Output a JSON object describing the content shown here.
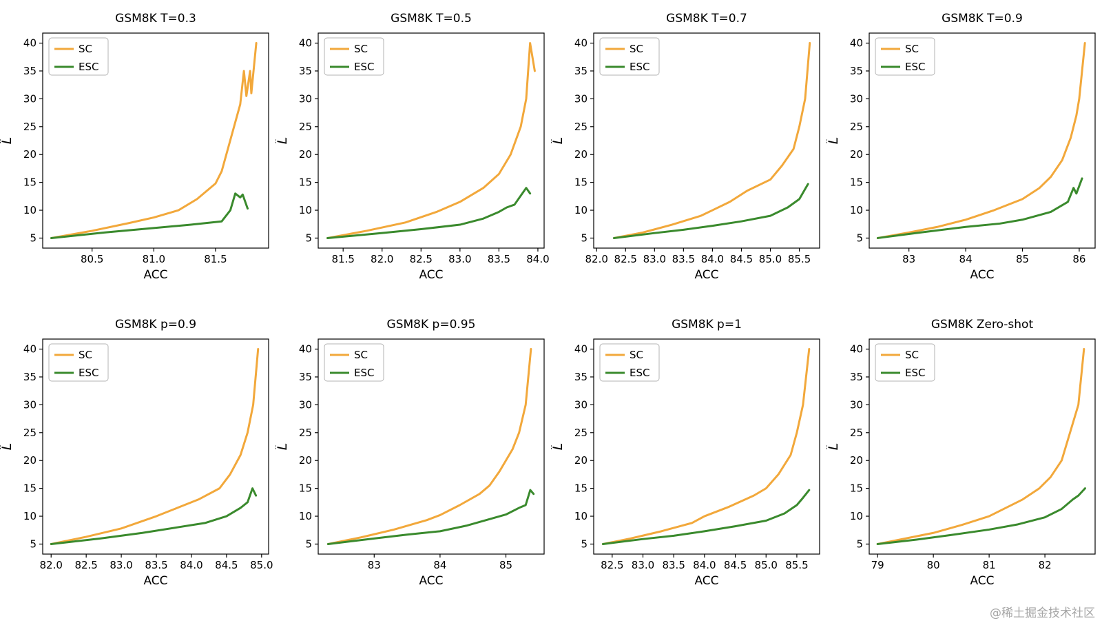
{
  "page": {
    "background": "#ffffff",
    "watermark": "@稀土掘金技术社区"
  },
  "colors": {
    "sc": "#F2A83B",
    "esc": "#3A8A2D",
    "frame": "#000000",
    "legend_border": "#b3b3b3"
  },
  "legend": {
    "entries": [
      "SC",
      "ESC"
    ]
  },
  "axes": {
    "xlabel": "ACC",
    "ylabel": "L̂",
    "yticks": [
      5,
      10,
      15,
      20,
      25,
      30,
      35,
      40
    ],
    "ylim": [
      3.2,
      41.8
    ]
  },
  "chart_data": [
    {
      "type": "line",
      "title": "GSM8K T=0.3",
      "xlabel": "ACC",
      "ylabel": "L̂",
      "xlim": [
        80.1,
        81.93
      ],
      "ylim": [
        3.2,
        41.8
      ],
      "xtick_values": [
        80.5,
        81.0,
        81.5
      ],
      "xtick_labels": [
        "80.5",
        "81.0",
        "81.5"
      ],
      "series": [
        {
          "name": "SC",
          "color_key": "sc",
          "points": [
            [
              80.17,
              5
            ],
            [
              80.5,
              6.3
            ],
            [
              80.8,
              7.7
            ],
            [
              81.0,
              8.7
            ],
            [
              81.2,
              10
            ],
            [
              81.35,
              12
            ],
            [
              81.5,
              14.8
            ],
            [
              81.55,
              17
            ],
            [
              81.6,
              21
            ],
            [
              81.65,
              25
            ],
            [
              81.7,
              29
            ],
            [
              81.73,
              35
            ],
            [
              81.75,
              30.5
            ],
            [
              81.78,
              35
            ],
            [
              81.79,
              31
            ],
            [
              81.83,
              40
            ]
          ]
        },
        {
          "name": "ESC",
          "color_key": "esc",
          "points": [
            [
              80.17,
              5
            ],
            [
              80.6,
              6
            ],
            [
              81.0,
              6.8
            ],
            [
              81.3,
              7.4
            ],
            [
              81.55,
              8
            ],
            [
              81.62,
              10
            ],
            [
              81.66,
              13
            ],
            [
              81.7,
              12.3
            ],
            [
              81.72,
              12.8
            ],
            [
              81.76,
              10.3
            ]
          ]
        }
      ]
    },
    {
      "type": "line",
      "title": "GSM8K T=0.5",
      "xlabel": "ACC",
      "ylabel": "L̂",
      "xlim": [
        81.18,
        84.08
      ],
      "ylim": [
        3.2,
        41.8
      ],
      "xtick_values": [
        81.5,
        82.0,
        82.5,
        83.0,
        83.5,
        84.0
      ],
      "xtick_labels": [
        "81.5",
        "82.0",
        "82.5",
        "83.0",
        "83.5",
        "84.0"
      ],
      "series": [
        {
          "name": "SC",
          "color_key": "sc",
          "points": [
            [
              81.3,
              5
            ],
            [
              81.8,
              6.3
            ],
            [
              82.3,
              7.8
            ],
            [
              82.7,
              9.7
            ],
            [
              83.0,
              11.5
            ],
            [
              83.3,
              14
            ],
            [
              83.5,
              16.5
            ],
            [
              83.65,
              20
            ],
            [
              83.78,
              25
            ],
            [
              83.85,
              30
            ],
            [
              83.9,
              40
            ],
            [
              83.96,
              35
            ]
          ]
        },
        {
          "name": "ESC",
          "color_key": "esc",
          "points": [
            [
              81.3,
              5
            ],
            [
              82.0,
              5.9
            ],
            [
              82.5,
              6.6
            ],
            [
              83.0,
              7.4
            ],
            [
              83.3,
              8.5
            ],
            [
              83.5,
              9.7
            ],
            [
              83.6,
              10.5
            ],
            [
              83.7,
              11
            ],
            [
              83.8,
              13
            ],
            [
              83.85,
              14
            ],
            [
              83.9,
              13
            ]
          ]
        }
      ]
    },
    {
      "type": "line",
      "title": "GSM8K T=0.7",
      "xlabel": "ACC",
      "ylabel": "L̂",
      "xlim": [
        81.95,
        85.85
      ],
      "ylim": [
        3.2,
        41.8
      ],
      "xtick_values": [
        82.0,
        82.5,
        83.0,
        83.5,
        84.0,
        84.5,
        85.0,
        85.5
      ],
      "xtick_labels": [
        "82.0",
        "82.5",
        "83.0",
        "83.5",
        "84.0",
        "84.5",
        "85.0",
        "85.5"
      ],
      "series": [
        {
          "name": "SC",
          "color_key": "sc",
          "points": [
            [
              82.3,
              5
            ],
            [
              82.8,
              6
            ],
            [
              83.3,
              7.4
            ],
            [
              83.8,
              9
            ],
            [
              84.0,
              10
            ],
            [
              84.3,
              11.5
            ],
            [
              84.6,
              13.5
            ],
            [
              85.0,
              15.5
            ],
            [
              85.2,
              18
            ],
            [
              85.4,
              21
            ],
            [
              85.5,
              25
            ],
            [
              85.6,
              30
            ],
            [
              85.68,
              40
            ]
          ]
        },
        {
          "name": "ESC",
          "color_key": "esc",
          "points": [
            [
              82.3,
              5
            ],
            [
              83.0,
              5.9
            ],
            [
              83.5,
              6.5
            ],
            [
              84.0,
              7.2
            ],
            [
              84.5,
              8
            ],
            [
              85.0,
              9
            ],
            [
              85.3,
              10.5
            ],
            [
              85.5,
              12
            ],
            [
              85.65,
              14.7
            ]
          ]
        }
      ]
    },
    {
      "type": "line",
      "title": "GSM8K T=0.9",
      "xlabel": "ACC",
      "ylabel": "L̂",
      "xlim": [
        82.3,
        86.28
      ],
      "ylim": [
        3.2,
        41.8
      ],
      "xtick_values": [
        83,
        84,
        85,
        86
      ],
      "xtick_labels": [
        "83",
        "84",
        "85",
        "86"
      ],
      "series": [
        {
          "name": "SC",
          "color_key": "sc",
          "points": [
            [
              82.45,
              5
            ],
            [
              83.0,
              6
            ],
            [
              83.5,
              7
            ],
            [
              84.0,
              8.3
            ],
            [
              84.5,
              10
            ],
            [
              85.0,
              12
            ],
            [
              85.3,
              14
            ],
            [
              85.5,
              16
            ],
            [
              85.7,
              19
            ],
            [
              85.85,
              23
            ],
            [
              85.95,
              27
            ],
            [
              86.0,
              30
            ],
            [
              86.1,
              40
            ]
          ]
        },
        {
          "name": "ESC",
          "color_key": "esc",
          "points": [
            [
              82.45,
              5
            ],
            [
              83.2,
              6
            ],
            [
              84.0,
              7
            ],
            [
              84.6,
              7.6
            ],
            [
              85.0,
              8.3
            ],
            [
              85.5,
              9.7
            ],
            [
              85.8,
              11.5
            ],
            [
              85.9,
              14
            ],
            [
              85.95,
              13
            ],
            [
              86.05,
              15.7
            ]
          ]
        }
      ]
    },
    {
      "type": "line",
      "title": "GSM8K p=0.9",
      "xlabel": "ACC",
      "ylabel": "L̂",
      "xlim": [
        81.88,
        85.1
      ],
      "ylim": [
        3.2,
        41.8
      ],
      "xtick_values": [
        82.0,
        82.5,
        83.0,
        83.5,
        84.0,
        84.5,
        85.0
      ],
      "xtick_labels": [
        "82.0",
        "82.5",
        "83.0",
        "83.5",
        "84.0",
        "84.5",
        "85.0"
      ],
      "series": [
        {
          "name": "SC",
          "color_key": "sc",
          "points": [
            [
              82.0,
              5
            ],
            [
              82.5,
              6.3
            ],
            [
              83.0,
              7.8
            ],
            [
              83.5,
              10
            ],
            [
              83.8,
              11.5
            ],
            [
              84.1,
              13
            ],
            [
              84.4,
              15
            ],
            [
              84.55,
              17.5
            ],
            [
              84.7,
              21
            ],
            [
              84.8,
              25
            ],
            [
              84.88,
              30
            ],
            [
              84.95,
              40
            ]
          ]
        },
        {
          "name": "ESC",
          "color_key": "esc",
          "points": [
            [
              82.0,
              5
            ],
            [
              82.7,
              6
            ],
            [
              83.3,
              7
            ],
            [
              83.8,
              8
            ],
            [
              84.2,
              8.8
            ],
            [
              84.5,
              10
            ],
            [
              84.7,
              11.5
            ],
            [
              84.8,
              12.5
            ],
            [
              84.87,
              15
            ],
            [
              84.92,
              13.7
            ]
          ]
        }
      ]
    },
    {
      "type": "line",
      "title": "GSM8K p=0.95",
      "xlabel": "ACC",
      "ylabel": "L̂",
      "xlim": [
        82.15,
        85.58
      ],
      "ylim": [
        3.2,
        41.8
      ],
      "xtick_values": [
        83,
        84,
        85
      ],
      "xtick_labels": [
        "83",
        "84",
        "85"
      ],
      "series": [
        {
          "name": "SC",
          "color_key": "sc",
          "points": [
            [
              82.3,
              5
            ],
            [
              82.8,
              6.2
            ],
            [
              83.3,
              7.6
            ],
            [
              83.8,
              9.3
            ],
            [
              84.0,
              10.2
            ],
            [
              84.3,
              12
            ],
            [
              84.6,
              14
            ],
            [
              84.75,
              15.5
            ],
            [
              84.9,
              18
            ],
            [
              85.1,
              22
            ],
            [
              85.2,
              25
            ],
            [
              85.3,
              30
            ],
            [
              85.38,
              40
            ]
          ]
        },
        {
          "name": "ESC",
          "color_key": "esc",
          "points": [
            [
              82.3,
              5
            ],
            [
              83.0,
              6
            ],
            [
              83.5,
              6.7
            ],
            [
              84.0,
              7.3
            ],
            [
              84.4,
              8.3
            ],
            [
              84.7,
              9.3
            ],
            [
              85.0,
              10.3
            ],
            [
              85.2,
              11.5
            ],
            [
              85.3,
              12
            ],
            [
              85.37,
              14.7
            ],
            [
              85.42,
              14
            ]
          ]
        }
      ]
    },
    {
      "type": "line",
      "title": "GSM8K p=1",
      "xlabel": "ACC",
      "ylabel": "L̂",
      "xlim": [
        82.2,
        85.87
      ],
      "ylim": [
        3.2,
        41.8
      ],
      "xtick_values": [
        82.5,
        83.0,
        83.5,
        84.0,
        84.5,
        85.0,
        85.5
      ],
      "xtick_labels": [
        "82.5",
        "83.0",
        "83.5",
        "84.0",
        "84.5",
        "85.0",
        "85.5"
      ],
      "series": [
        {
          "name": "SC",
          "color_key": "sc",
          "points": [
            [
              82.35,
              5
            ],
            [
              82.8,
              6
            ],
            [
              83.3,
              7.3
            ],
            [
              83.8,
              8.8
            ],
            [
              84.0,
              10
            ],
            [
              84.4,
              11.7
            ],
            [
              84.8,
              13.7
            ],
            [
              85.0,
              15
            ],
            [
              85.2,
              17.5
            ],
            [
              85.4,
              21
            ],
            [
              85.5,
              25
            ],
            [
              85.6,
              30
            ],
            [
              85.7,
              40
            ]
          ]
        },
        {
          "name": "ESC",
          "color_key": "esc",
          "points": [
            [
              82.35,
              5
            ],
            [
              83.0,
              5.9
            ],
            [
              83.5,
              6.5
            ],
            [
              84.0,
              7.3
            ],
            [
              84.5,
              8.2
            ],
            [
              85.0,
              9.2
            ],
            [
              85.3,
              10.5
            ],
            [
              85.5,
              12
            ],
            [
              85.6,
              13.3
            ],
            [
              85.7,
              14.7
            ]
          ]
        }
      ]
    },
    {
      "type": "line",
      "title": "GSM8K Zero-shot",
      "xlabel": "ACC",
      "ylabel": "L̂",
      "xlim": [
        78.85,
        82.9
      ],
      "ylim": [
        3.2,
        41.8
      ],
      "xtick_values": [
        79,
        80,
        81,
        82
      ],
      "xtick_labels": [
        "79",
        "80",
        "81",
        "82"
      ],
      "series": [
        {
          "name": "SC",
          "color_key": "sc",
          "points": [
            [
              79.0,
              5
            ],
            [
              79.5,
              6
            ],
            [
              80.0,
              7
            ],
            [
              80.5,
              8.4
            ],
            [
              81.0,
              10
            ],
            [
              81.3,
              11.5
            ],
            [
              81.6,
              13
            ],
            [
              81.9,
              15
            ],
            [
              82.1,
              17
            ],
            [
              82.3,
              20
            ],
            [
              82.45,
              25
            ],
            [
              82.6,
              30
            ],
            [
              82.7,
              40
            ]
          ]
        },
        {
          "name": "ESC",
          "color_key": "esc",
          "points": [
            [
              79.0,
              5
            ],
            [
              79.7,
              5.8
            ],
            [
              80.3,
              6.6
            ],
            [
              81.0,
              7.6
            ],
            [
              81.5,
              8.5
            ],
            [
              82.0,
              9.8
            ],
            [
              82.3,
              11.3
            ],
            [
              82.5,
              13
            ],
            [
              82.6,
              13.7
            ],
            [
              82.72,
              15
            ]
          ]
        }
      ]
    }
  ]
}
